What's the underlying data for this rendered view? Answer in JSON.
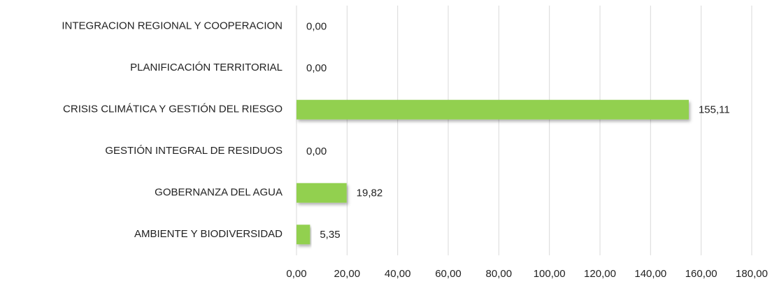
{
  "chart_data": {
    "type": "bar",
    "orientation": "horizontal",
    "categories": [
      "INTEGRACION REGIONAL Y COOPERACION",
      "PLANIFICACIÓN TERRITORIAL",
      "CRISIS CLIMÁTICA Y GESTIÓN DEL RIESGO",
      "GESTIÓN INTEGRAL DE RESIDUOS",
      "GOBERNANZA DEL AGUA",
      "AMBIENTE Y BIODIVERSIDAD"
    ],
    "values": [
      0,
      0,
      155.11,
      0,
      19.82,
      5.35
    ],
    "value_labels": [
      "0,00",
      "0,00",
      "155,11",
      "0,00",
      "19,82",
      "5,35"
    ],
    "color": "#92d050",
    "xlim": [
      0,
      180
    ],
    "xticks": [
      {
        "value": 0,
        "label": "0,00"
      },
      {
        "value": 20,
        "label": "20,00"
      },
      {
        "value": 40,
        "label": "40,00"
      },
      {
        "value": 60,
        "label": "60,00"
      },
      {
        "value": 80,
        "label": "80,00"
      },
      {
        "value": 100,
        "label": "100,00"
      },
      {
        "value": 120,
        "label": "120,00"
      },
      {
        "value": 140,
        "label": "140,00"
      },
      {
        "value": 160,
        "label": "160,00"
      },
      {
        "value": 180,
        "label": "180,00"
      }
    ],
    "grid": true
  }
}
